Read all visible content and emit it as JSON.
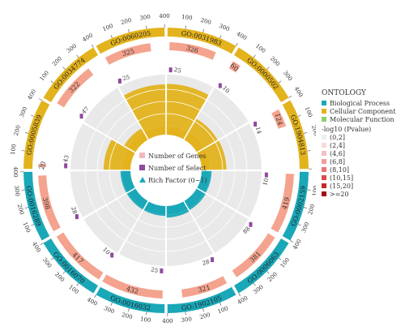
{
  "chart_data": {
    "type": "circos-go-enrichment",
    "terms": [
      {
        "id": "GO:0060205",
        "category": "Cellular Component",
        "genes": 400,
        "select": 325,
        "richfactor": 0.81,
        "pvalue_bin": "(0,2]"
      },
      {
        "id": "GO:0031983",
        "category": "Cellular Component",
        "genes": 400,
        "select": 326,
        "richfactor": 0.82,
        "pvalue_bin": "(0,2]"
      },
      {
        "id": "GO:0000502",
        "category": "Cellular Component",
        "genes": 200,
        "select": 60,
        "richfactor": 0.3,
        "pvalue_bin": "(0,2]"
      },
      {
        "id": "GO:1904813",
        "category": "Cellular Component",
        "genes": 400,
        "select": 124,
        "richfactor": 0.31,
        "pvalue_bin": "(0,2]"
      },
      {
        "id": "GO:0002159",
        "category": "Biological Process",
        "genes": 400,
        "select": 419,
        "richfactor": 0.02,
        "pvalue_bin": "(0,2]"
      },
      {
        "id": "GO:0006063",
        "category": "Biological Process",
        "genes": 400,
        "select": 381,
        "richfactor": 0.03,
        "pvalue_bin": "(0,2]"
      },
      {
        "id": "GO:1902105",
        "category": "Biological Process",
        "genes": 400,
        "select": 321,
        "richfactor": 0.05,
        "pvalue_bin": "(0,2]"
      },
      {
        "id": "GO:0016032",
        "category": "Biological Process",
        "genes": 400,
        "select": 432,
        "richfactor": 0.02,
        "pvalue_bin": "(0,2]"
      },
      {
        "id": "GO:0016070",
        "category": "Biological Process",
        "genes": 400,
        "select": 417,
        "richfactor": 0.02,
        "pvalue_bin": "(0,2]"
      },
      {
        "id": "GO:0016289",
        "category": "Biological Process",
        "genes": 400,
        "select": 398,
        "richfactor": 0.02,
        "pvalue_bin": "(0,2]"
      },
      {
        "id": "GO:0005839",
        "category": "Cellular Component",
        "genes": 400,
        "select": 20,
        "richfactor": 0.35,
        "pvalue_bin": "(0,2]"
      },
      {
        "id": "GO:0034774",
        "category": "Cellular Component",
        "genes": 400,
        "select": 322,
        "richfactor": 0.08,
        "pvalue_bin": "(0,2]"
      }
    ],
    "inner_labels": [
      "25",
      "25",
      "10",
      "14",
      "10",
      "88",
      "28",
      "25",
      "10",
      "28",
      "43",
      "47",
      "35",
      "25"
    ],
    "tick_labels": [
      "100",
      "200",
      "300",
      "400"
    ],
    "center_legend": [
      {
        "label": "Number of Genes",
        "shape": "square",
        "color": "#f2b8c0"
      },
      {
        "label": "Number of Select",
        "shape": "square",
        "color": "#8e4a9e"
      },
      {
        "label": "Rich Factor (0~1)",
        "shape": "triangle",
        "color": "#1aa8b8"
      }
    ],
    "ontology_title": "ONTOLOGY",
    "ontology": [
      {
        "label": "Biological Process",
        "color": "#1aa8b8"
      },
      {
        "label": "Cellular Component",
        "color": "#e3b31d"
      },
      {
        "label": "Molecular Function",
        "color": "#8fcf6e"
      }
    ],
    "pvalue_title": "-log10 (Pvalue)",
    "pvalue_bins": [
      {
        "label": "(0,2]",
        "color": "#efefef"
      },
      {
        "label": "(2,4]",
        "color": "#f7dada"
      },
      {
        "label": "(4,6]",
        "color": "#f4c0c0"
      },
      {
        "label": "(6,8]",
        "color": "#ee9c9c"
      },
      {
        "label": "(8,10]",
        "color": "#e87474"
      },
      {
        "label": "(10,15]",
        "color": "#dd4a4a"
      },
      {
        "label": "(15,20]",
        "color": "#c62626"
      },
      {
        "label": ">=20",
        "color": "#a30f0f"
      }
    ]
  }
}
